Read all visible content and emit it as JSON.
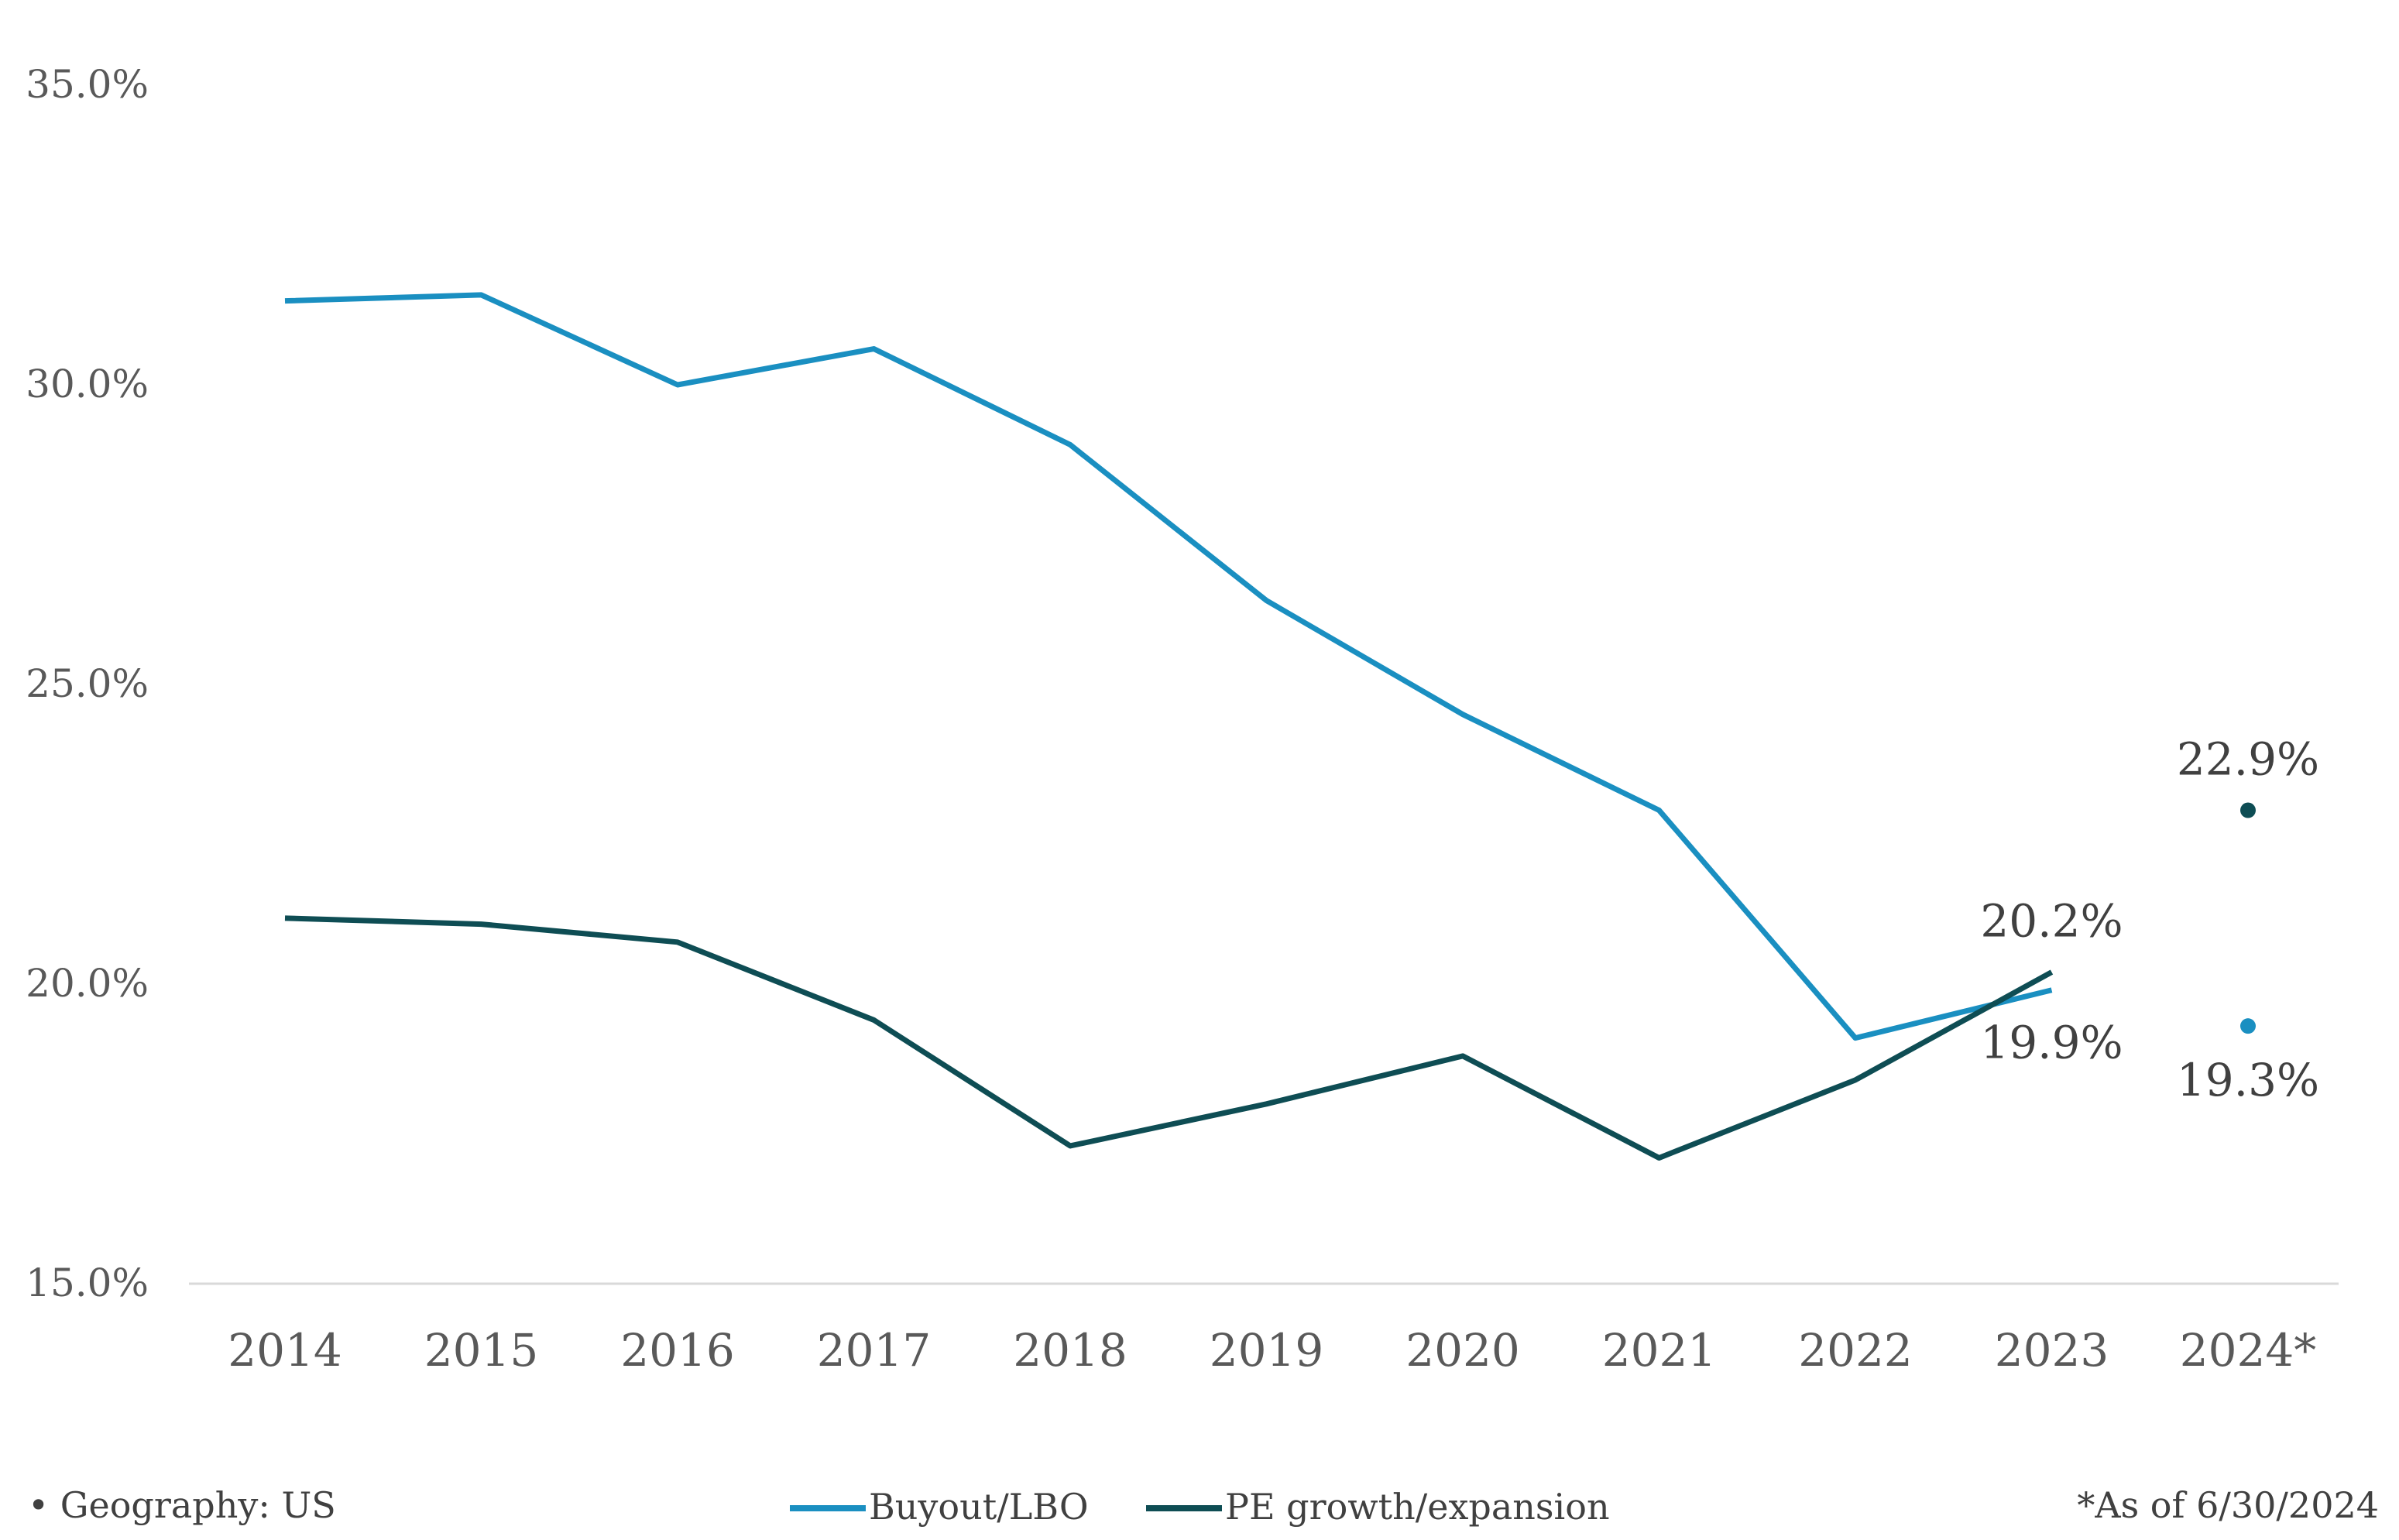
{
  "chart_data": {
    "type": "line",
    "categories": [
      "2014",
      "2015",
      "2016",
      "2017",
      "2018",
      "2019",
      "2020",
      "2021",
      "2022",
      "2023",
      "2024*"
    ],
    "y_tick_labels": [
      "15.0%",
      "20.0%",
      "25.0%",
      "30.0%",
      "35.0%"
    ],
    "ylim": [
      15,
      35
    ],
    "y_ticks": [
      15,
      20,
      25,
      30,
      35
    ],
    "grid": false,
    "legend_position": "bottom",
    "series": [
      {
        "name": "Buyout/LBO",
        "color": "#1a8fc1",
        "values": [
          31.4,
          31.5,
          30.0,
          30.6,
          29.0,
          26.4,
          24.5,
          22.9,
          19.1,
          19.9,
          19.3
        ]
      },
      {
        "name": "PE growth/expansion",
        "color": "#0e4d54",
        "values": [
          21.1,
          21.0,
          20.7,
          19.4,
          17.3,
          18.0,
          18.8,
          17.1,
          18.4,
          20.2,
          22.9
        ]
      }
    ],
    "data_labels": {
      "buyout_2023": "19.9%",
      "growth_2023": "20.2%",
      "buyout_2024": "19.3%",
      "growth_2024": "22.9%"
    },
    "footnote_left": "• Geography: US",
    "footnote_right": "*As of 6/30/2024"
  }
}
